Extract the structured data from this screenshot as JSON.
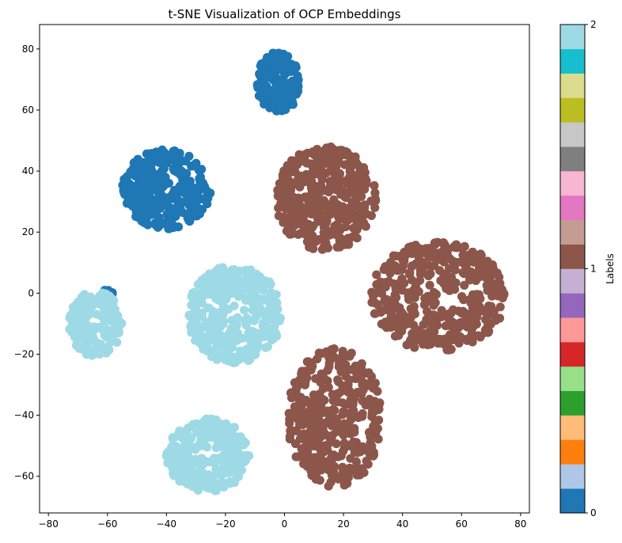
{
  "chart_data": {
    "type": "scatter",
    "title": "t-SNE Visualization of OCP Embeddings",
    "xlabel": "",
    "ylabel": "",
    "xlim": [
      -83,
      83
    ],
    "ylim": [
      -72,
      88
    ],
    "xticks": [
      -80,
      -60,
      -40,
      -20,
      0,
      20,
      40,
      60,
      80
    ],
    "yticks": [
      -60,
      -40,
      -20,
      0,
      20,
      40,
      60,
      80
    ],
    "grid": false,
    "colorbar": {
      "label": "Labels",
      "range": [
        0,
        2
      ],
      "ticks": [
        0,
        1,
        2
      ],
      "colormap": [
        "#1f77b4",
        "#aec7e8",
        "#ff7f0e",
        "#ffbb78",
        "#2ca02c",
        "#98df8a",
        "#d62728",
        "#ff9896",
        "#9467bd",
        "#c5b0d5",
        "#8c564b",
        "#c49c94",
        "#e377c2",
        "#f7b6d2",
        "#7f7f7f",
        "#c7c7c7",
        "#bcbd22",
        "#dbdb8d",
        "#17becf",
        "#9edae5"
      ]
    },
    "clusters": [
      {
        "label": 0,
        "color": "#1f77b4",
        "cx": -2,
        "cy": 69,
        "rx": 7.5,
        "ry": 10,
        "n": 170
      },
      {
        "label": 0,
        "color": "#1f77b4",
        "cx": -40,
        "cy": 34,
        "rx": 15,
        "ry": 13,
        "n": 300
      },
      {
        "label": 0,
        "color": "#1f77b4",
        "cx": -61,
        "cy": 0,
        "rx": 3,
        "ry": 1.5,
        "n": 12
      },
      {
        "label": 1,
        "color": "#8c564b",
        "cx": 14,
        "cy": 31,
        "rx": 17,
        "ry": 17,
        "n": 380
      },
      {
        "label": 1,
        "color": "#8c564b",
        "cx": 52,
        "cy": -1,
        "rx": 23,
        "ry": 18,
        "n": 420
      },
      {
        "label": 1,
        "color": "#8c564b",
        "cx": 17,
        "cy": -41,
        "rx": 16,
        "ry": 23,
        "n": 380
      },
      {
        "label": 2,
        "color": "#9edae5",
        "cx": -64,
        "cy": -10,
        "rx": 9,
        "ry": 11,
        "n": 170
      },
      {
        "label": 2,
        "color": "#9edae5",
        "cx": -17,
        "cy": -7,
        "rx": 16,
        "ry": 16,
        "n": 360
      },
      {
        "label": 2,
        "color": "#9edae5",
        "cx": -26,
        "cy": -53,
        "rx": 14,
        "ry": 12,
        "n": 280
      }
    ]
  }
}
